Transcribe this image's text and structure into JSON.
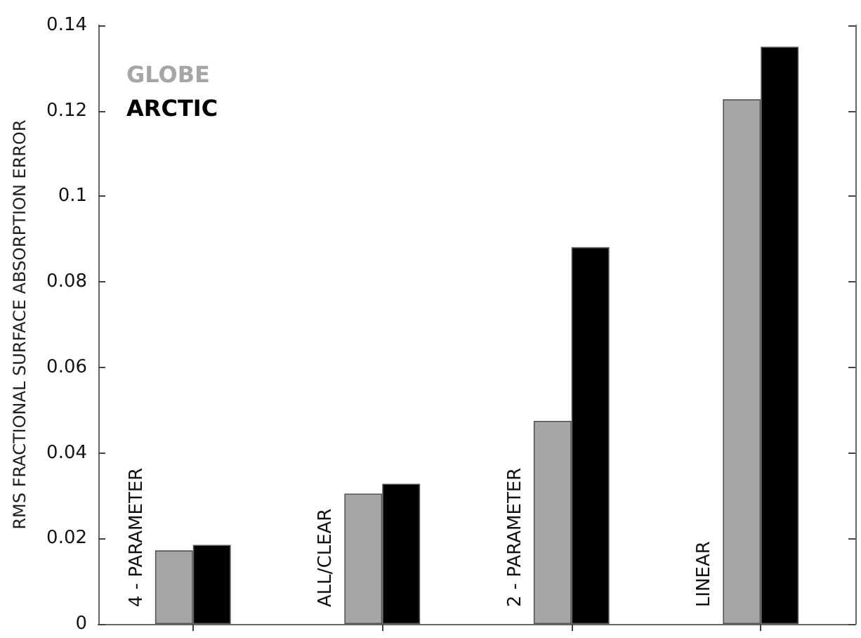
{
  "chart_data": {
    "type": "bar",
    "ylabel": "RMS FRACTIONAL SURFACE ABSORPTION ERROR",
    "categories": [
      "4 - PARAMETER",
      "ALL/CLEAR",
      "2 - PARAMETER",
      "LINEAR"
    ],
    "series": [
      {
        "name": "GLOBE",
        "color": "#a6a6a6",
        "values": [
          0.0172,
          0.0305,
          0.0475,
          0.1227
        ]
      },
      {
        "name": "ARCTIC",
        "color": "#000000",
        "values": [
          0.0185,
          0.0328,
          0.0881,
          0.135
        ]
      }
    ],
    "ylim": [
      0,
      0.14
    ],
    "yticks": [
      0,
      0.02,
      0.04,
      0.06,
      0.08,
      0.1,
      0.12,
      0.14
    ],
    "grid": false
  }
}
